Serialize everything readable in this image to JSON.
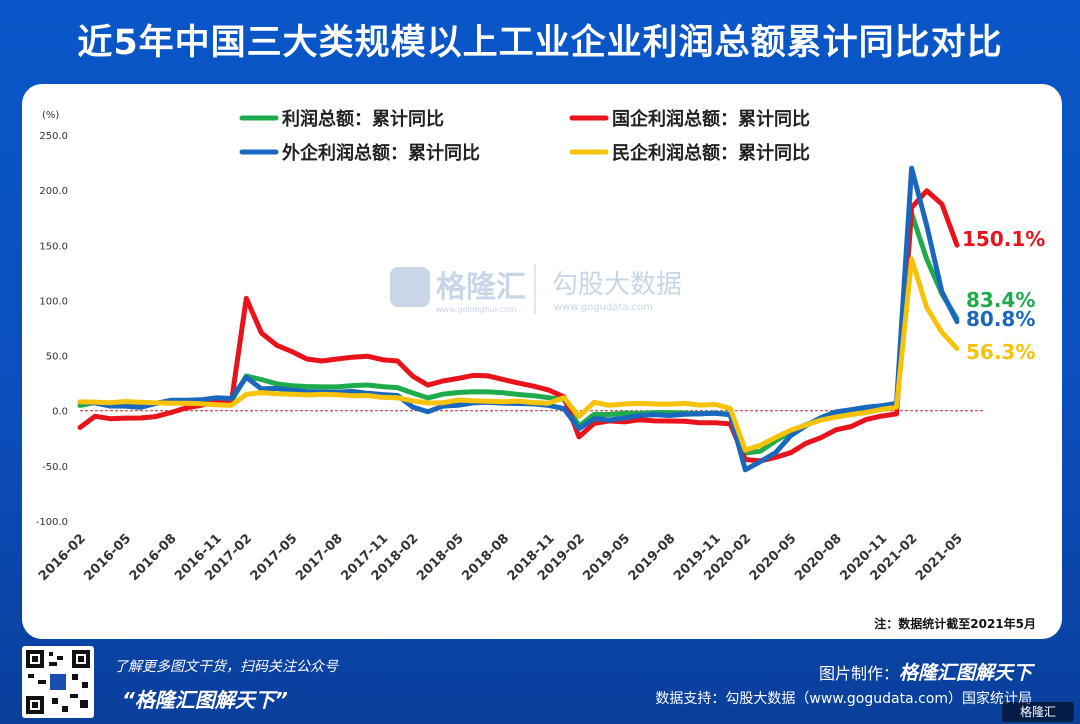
{
  "title": "近5年中国三大类规模以上工业企业利润总额累计同比对比",
  "footer": {
    "hint": "了解更多图文干货，扫码关注公众号",
    "slogan": "“格隆汇图解天下”",
    "maker_label": "图片制作：",
    "maker_brand": "格隆汇图解天下",
    "source": "数据支持：勾股大数据（www.gogudata.com）国家统计局",
    "badge": "格隆汇"
  },
  "watermark": {
    "brand": "格隆汇",
    "sub": "www.gelonghui.com",
    "brand2": "勾股大数据",
    "sub2": "www.gogudata.com"
  },
  "colors": {
    "green": "#1fab4c",
    "red": "#e8131b",
    "blue": "#1a68bd",
    "yellow": "#f7c20a"
  },
  "chart_data": {
    "type": "line",
    "unit_label": "(%)",
    "note": "注：数据统计截至2021年5月",
    "ylim": [
      -100,
      250
    ],
    "yticks": [
      250,
      200,
      150,
      100,
      50,
      0,
      -50,
      -100
    ],
    "ytick_labels": [
      "250.0",
      "200.0",
      "150.0",
      "100.0",
      "50.0",
      "0.0",
      "-50.0",
      "-100.0"
    ],
    "categories": [
      "2016-02",
      "2016-03",
      "2016-04",
      "2016-05",
      "2016-06",
      "2016-07",
      "2016-08",
      "2016-09",
      "2016-10",
      "2016-11",
      "2016-12",
      "2017-02",
      "2017-03",
      "2017-04",
      "2017-05",
      "2017-06",
      "2017-07",
      "2017-08",
      "2017-09",
      "2017-10",
      "2017-11",
      "2017-12",
      "2018-02",
      "2018-03",
      "2018-04",
      "2018-05",
      "2018-06",
      "2018-07",
      "2018-08",
      "2018-09",
      "2018-10",
      "2018-11",
      "2018-12",
      "2019-02",
      "2019-03",
      "2019-04",
      "2019-05",
      "2019-06",
      "2019-07",
      "2019-08",
      "2019-09",
      "2019-10",
      "2019-11",
      "2019-12",
      "2020-02",
      "2020-03",
      "2020-04",
      "2020-05",
      "2020-06",
      "2020-07",
      "2020-08",
      "2020-09",
      "2020-10",
      "2020-11",
      "2020-12",
      "2021-02",
      "2021-03",
      "2021-04",
      "2021-05"
    ],
    "xtick_labels": [
      "2016-02",
      "2016-05",
      "2016-08",
      "2016-11",
      "2017-02",
      "2017-05",
      "2017-08",
      "2017-11",
      "2018-02",
      "2018-05",
      "2018-08",
      "2018-11",
      "2019-02",
      "2019-05",
      "2019-08",
      "2019-11",
      "2020-02",
      "2020-05",
      "2020-08",
      "2020-11",
      "2021-02",
      "2021-05"
    ],
    "series": [
      {
        "name": "利润总额：累计同比",
        "color": "#1fab4c",
        "end_label": "83.4%",
        "values": [
          4.8,
          7.4,
          6.5,
          6.4,
          6.2,
          6.9,
          8.4,
          8.4,
          8.6,
          9.4,
          8.5,
          31.5,
          28.3,
          24.4,
          22.7,
          22,
          21.6,
          21.6,
          22.8,
          23.3,
          21.9,
          21,
          16.1,
          11.6,
          15,
          16.5,
          17.2,
          17.1,
          16.2,
          14.7,
          13.6,
          11.8,
          10.3,
          -14,
          -3.3,
          -3.4,
          -2.3,
          -2.4,
          -1.7,
          -1.7,
          -2.1,
          -2.9,
          -2.1,
          -3.3,
          -38.3,
          -36.7,
          -27.4,
          -19.3,
          -12.8,
          -8.1,
          -4.4,
          -2.4,
          0.7,
          2.4,
          4.1,
          178.9,
          137.3,
          106,
          83.4
        ]
      },
      {
        "name": "国企利润总额：累计同比",
        "color": "#e8131b",
        "end_label": "150.1%",
        "values": [
          -15.2,
          -5.1,
          -7.2,
          -6.7,
          -6.6,
          -5.3,
          -1.7,
          2.5,
          4.9,
          8.5,
          6.7,
          101.9,
          70.6,
          59.4,
          53.7,
          46.9,
          45.1,
          46.9,
          48.5,
          49.4,
          46.3,
          45.1,
          31.4,
          23.2,
          26.9,
          29.3,
          32,
          31.6,
          28.2,
          25,
          22.2,
          18.7,
          12.6,
          -23.7,
          -11.5,
          -9.2,
          -10.1,
          -8.2,
          -9.2,
          -9.3,
          -9.6,
          -10.9,
          -10.9,
          -12,
          -44.2,
          -45.5,
          -42.2,
          -38.1,
          -29.6,
          -24.5,
          -17.3,
          -14.3,
          -7.9,
          -4.9,
          -2.9,
          184.3,
          199.4,
          187.3,
          150.1
        ]
      },
      {
        "name": "外企利润总额：累计同比",
        "color": "#1a68bd",
        "end_label": "80.8%",
        "values": [
          7.9,
          7.1,
          4.3,
          4.2,
          3,
          6.5,
          9.4,
          9.5,
          9.9,
          11.7,
          11.1,
          30.3,
          19.8,
          20.2,
          18.5,
          17.3,
          17,
          16.7,
          17.5,
          15.8,
          14.6,
          13.8,
          3.4,
          -1,
          4.2,
          4.9,
          7.1,
          7.6,
          6.8,
          6.5,
          6.2,
          4.8,
          1.9,
          -16.2,
          -7.3,
          -8.4,
          -6.6,
          -4.3,
          -3.5,
          -4.3,
          -3.2,
          -2.8,
          -2.3,
          -3.6,
          -53.6,
          -46.1,
          -38.1,
          -22.6,
          -13.7,
          -6.2,
          -1,
          0.9,
          3.2,
          4.5,
          6.6,
          219.9,
          167.7,
          107.8,
          80.8
        ]
      },
      {
        "name": "民企利润总额：累计同比",
        "color": "#f7c20a",
        "end_label": "56.3%",
        "values": [
          8,
          7.8,
          7.2,
          8.4,
          7.6,
          7.3,
          6.8,
          6.8,
          6.3,
          5.4,
          4.8,
          14.8,
          16.4,
          15.4,
          14.9,
          14.3,
          14.8,
          14.4,
          13.6,
          13.8,
          12.1,
          11.7,
          9,
          7,
          7.2,
          9.7,
          9,
          8.5,
          8.2,
          8.7,
          7.4,
          6.8,
          11.9,
          -5.2,
          7.6,
          4.9,
          6.1,
          6.6,
          6.1,
          5.9,
          6.6,
          5.1,
          5.6,
          2.2,
          -35.7,
          -31.4,
          -24.3,
          -17.6,
          -13,
          -8.5,
          -5.8,
          -3.4,
          -1.6,
          1.2,
          3.2,
          137.5,
          93.5,
          71.1,
          56.3
        ]
      }
    ],
    "legend": [
      {
        "label": "利润总额：累计同比",
        "color": "#1fab4c"
      },
      {
        "label": "国企利润总额：累计同比",
        "color": "#e8131b"
      },
      {
        "label": "外企利润总额：累计同比",
        "color": "#1a68bd"
      },
      {
        "label": "民企利润总额：累计同比",
        "color": "#f7c20a"
      }
    ]
  }
}
